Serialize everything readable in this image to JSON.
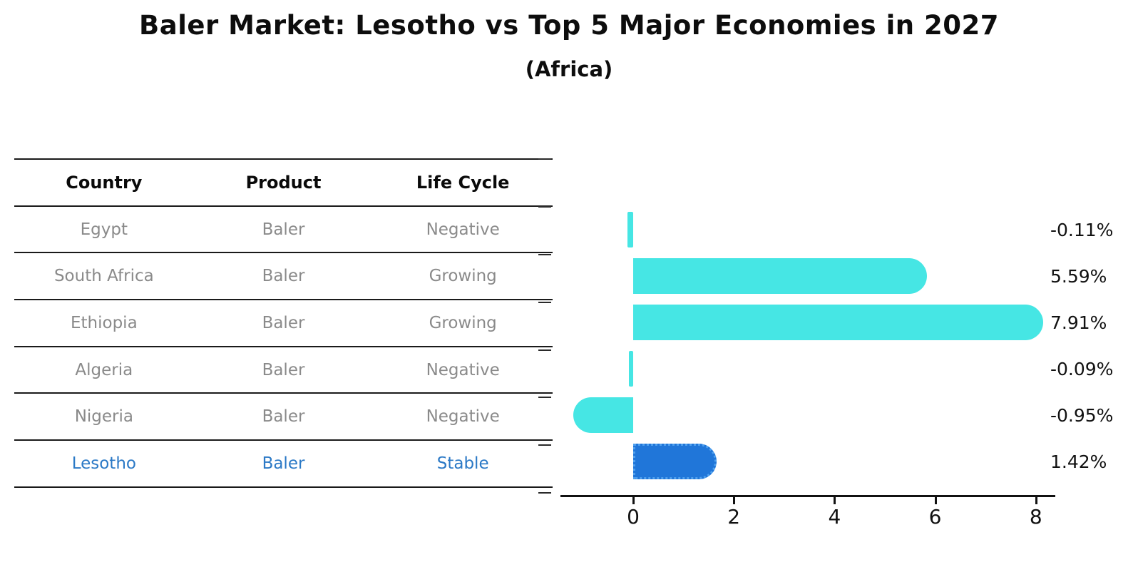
{
  "header": {
    "title": "Baler Market: Lesotho vs Top 5 Major Economies in 2027",
    "subtitle": "(Africa)"
  },
  "table": {
    "columns": [
      "Country",
      "Product",
      "Life Cycle"
    ],
    "rows": [
      {
        "country": "Egypt",
        "product": "Baler",
        "life_cycle": "Negative",
        "highlight": false
      },
      {
        "country": "South Africa",
        "product": "Baler",
        "life_cycle": "Growing",
        "highlight": false
      },
      {
        "country": "Ethiopia",
        "product": "Baler",
        "life_cycle": "Growing",
        "highlight": false
      },
      {
        "country": "Algeria",
        "product": "Baler",
        "life_cycle": "Negative",
        "highlight": false
      },
      {
        "country": "Nigeria",
        "product": "Baler",
        "life_cycle": "Negative",
        "highlight": false
      },
      {
        "country": "Lesotho",
        "product": "Baler",
        "life_cycle": "Stable",
        "highlight": true
      }
    ]
  },
  "chart_data": {
    "type": "bar",
    "orientation": "horizontal",
    "title": "Baler Market: Lesotho vs Top 5 Major Economies in 2027 (Africa)",
    "categories": [
      "Egypt",
      "South Africa",
      "Ethiopia",
      "Algeria",
      "Nigeria",
      "Lesotho"
    ],
    "values": [
      -0.11,
      5.59,
      7.91,
      -0.09,
      -0.95,
      1.42
    ],
    "value_labels": [
      "-0.11%",
      "5.59%",
      "7.91%",
      "-0.09%",
      "-0.95%",
      "1.42%"
    ],
    "x_ticks": [
      0,
      2,
      4,
      6,
      8
    ],
    "x_tick_labels": [
      "0",
      "2",
      "4",
      "6",
      "8"
    ],
    "xlim": [
      -1.5,
      8.6
    ],
    "grid": false,
    "legend": null,
    "highlight_index": 5,
    "colors": {
      "bar": "#46E6E4",
      "highlight_bar": "#2076D9",
      "highlight_bar_border": "#4FA0EE",
      "highlight_text": "#2B79C6",
      "table_text": "#8A8A8A",
      "heading_text": "#0A0A0A"
    }
  }
}
